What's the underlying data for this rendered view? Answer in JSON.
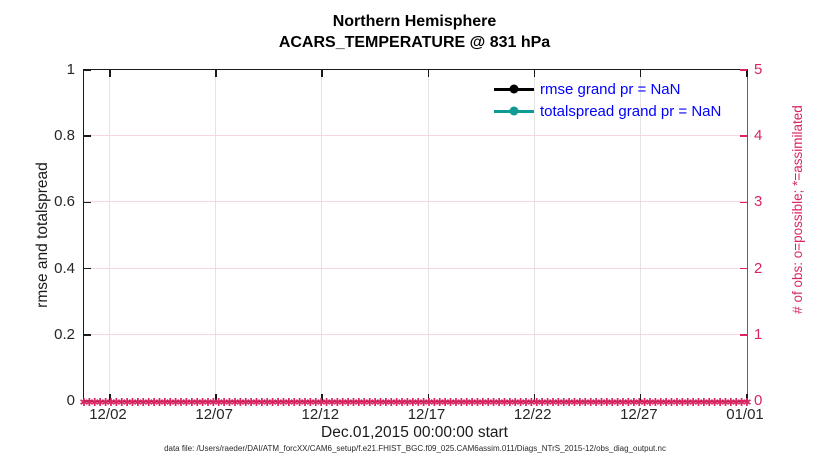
{
  "chart_data": {
    "type": "line",
    "title": "Northern Hemisphere",
    "subtitle": "ACARS_TEMPERATURE @ 831 hPa",
    "xlabel": "Dec.01,2015 00:00:00 start",
    "x_tick_labels": [
      "12/02",
      "12/07",
      "12/12",
      "12/17",
      "12/22",
      "12/27",
      "01/01"
    ],
    "y_left": {
      "label": "rmse and totalspread",
      "tick_labels": [
        "0",
        "0.2",
        "0.4",
        "0.6",
        "0.8",
        "1"
      ],
      "ticks": [
        0,
        0.2,
        0.4,
        0.6,
        0.8,
        1
      ],
      "range": [
        0,
        1
      ],
      "color": "#1a1a1a"
    },
    "y_right": {
      "label": "# of obs: o=possible; *=assimilated",
      "tick_labels": [
        "0",
        "1",
        "2",
        "3",
        "4",
        "5"
      ],
      "ticks": [
        0,
        1,
        2,
        3,
        4,
        5
      ],
      "range": [
        0,
        5
      ],
      "color": "#d92561"
    },
    "grid": true,
    "legend_position": "top-right",
    "series": [
      {
        "name": "rmse grand pr = NaN",
        "color": "#000000",
        "marker": "circle",
        "grand_pr": "NaN",
        "values": []
      },
      {
        "name": "totalspread grand pr = NaN",
        "color": "#0e9b94",
        "marker": "circle",
        "grand_pr": "NaN",
        "values": []
      }
    ],
    "obs_count_markers": {
      "glyph": "✱",
      "color": "#d92561",
      "value_on_right_axis": 0,
      "count": 124
    },
    "legend_text_color": "#0000ff",
    "annotation": "data file: /Users/raeder/DAI/ATM_forcXX/CAM6_setup/f.e21.FHIST_BGC.f09_025.CAM6assim.011/Diags_NTrS_2015-12/obs_diag_output.nc"
  }
}
